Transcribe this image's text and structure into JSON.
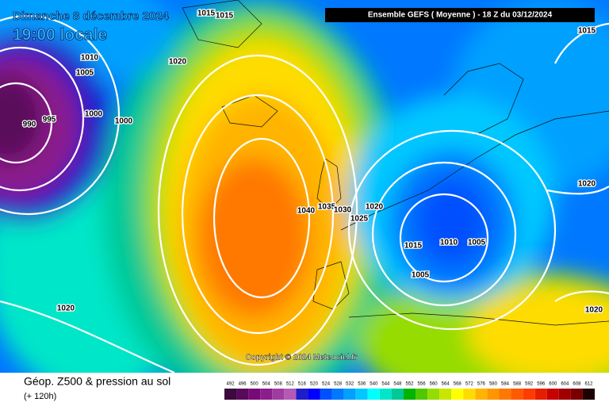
{
  "header": {
    "date": "Dimanche 8 décembre 2024",
    "time": "19:00 locale",
    "model": "Ensemble GEFS  ( Moyenne )  -  18 Z du 03/12/2024"
  },
  "copyright": "Copyright © 2024 Meteociel.fr",
  "footer": {
    "title": "Géop. Z500 & pression au sol",
    "subtitle": "(+ 120h)"
  },
  "isobar_labels": [
    1015,
    1015,
    1010,
    1005,
    1020,
    995,
    990,
    1000,
    1000,
    1015,
    1020,
    1040,
    1035,
    1030,
    1025,
    1020,
    1015,
    1010,
    1005,
    1005,
    1020,
    1020
  ],
  "colorbar": [
    {
      "value": 492,
      "color": "#3c0a3c"
    },
    {
      "value": 496,
      "color": "#5a0a5a"
    },
    {
      "value": 500,
      "color": "#780a78"
    },
    {
      "value": 504,
      "color": "#8c1e8c"
    },
    {
      "value": 508,
      "color": "#a03ca0"
    },
    {
      "value": 512,
      "color": "#b45ab4"
    },
    {
      "value": 516,
      "color": "#1e1ec8"
    },
    {
      "value": 520,
      "color": "#0000ff"
    },
    {
      "value": 524,
      "color": "#0050ff"
    },
    {
      "value": 528,
      "color": "#0078ff"
    },
    {
      "value": 532,
      "color": "#00a0ff"
    },
    {
      "value": 536,
      "color": "#00c8ff"
    },
    {
      "value": 540,
      "color": "#00ffff"
    },
    {
      "value": 544,
      "color": "#00e6c8"
    },
    {
      "value": 548,
      "color": "#00c896"
    },
    {
      "value": 552,
      "color": "#00b400"
    },
    {
      "value": 556,
      "color": "#50c800"
    },
    {
      "value": 560,
      "color": "#96dc00"
    },
    {
      "value": 564,
      "color": "#c8e600"
    },
    {
      "value": 568,
      "color": "#ffff00"
    },
    {
      "value": 572,
      "color": "#ffdc00"
    },
    {
      "value": 576,
      "color": "#ffb400"
    },
    {
      "value": 580,
      "color": "#ff9600"
    },
    {
      "value": 584,
      "color": "#ff7800"
    },
    {
      "value": 588,
      "color": "#ff5a00"
    },
    {
      "value": 592,
      "color": "#ff3c00"
    },
    {
      "value": 596,
      "color": "#e61e00"
    },
    {
      "value": 600,
      "color": "#c80000"
    },
    {
      "value": 604,
      "color": "#a00000"
    },
    {
      "value": 608,
      "color": "#780000"
    },
    {
      "value": 612,
      "color": "#1e0000"
    }
  ]
}
